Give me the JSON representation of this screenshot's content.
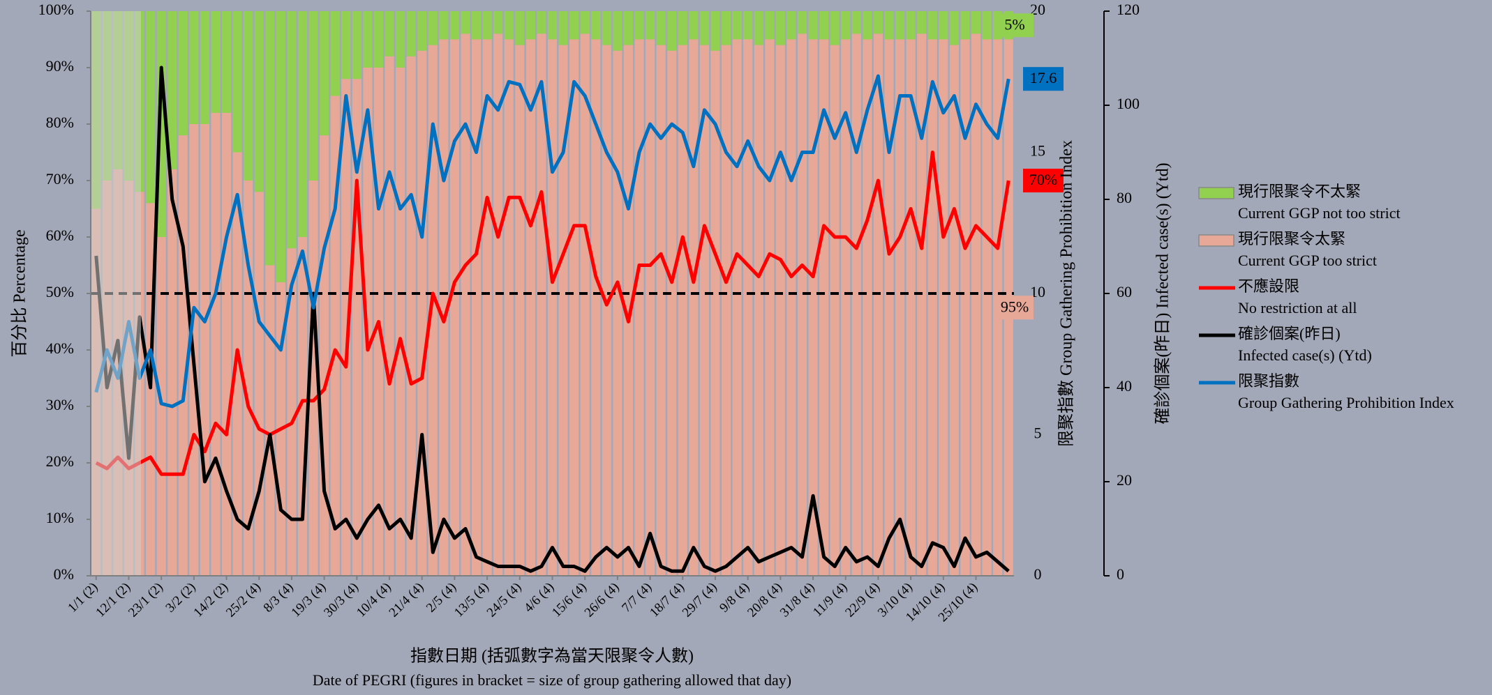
{
  "chart_data": {
    "type": "combo",
    "x_title": "指數日期 (括弧數字為當天限聚令人數)",
    "x_title_en": "Date of PEGRI (figures in bracket = size of group gathering allowed that day)",
    "y_title": "百分比 Percentage",
    "y2_title": "限聚指數 Group Gathering Prohibition Index",
    "y3_title": "確診個案(昨日) Infected case(s) (Ytd)",
    "categories": [
      "1/1 (2)",
      null,
      null,
      "12/1 (2)",
      null,
      null,
      "23/1 (2)",
      null,
      null,
      "3/2 (2)",
      null,
      null,
      "14/2 (2)",
      null,
      null,
      "25/2 (4)",
      null,
      null,
      "8/3 (4)",
      null,
      null,
      "19/3 (4)",
      null,
      null,
      "30/3 (4)",
      null,
      null,
      "10/4 (4)",
      null,
      null,
      "21/4 (4)",
      null,
      null,
      "2/5 (4)",
      null,
      null,
      "13/5 (4)",
      null,
      null,
      "24/5 (4)",
      null,
      null,
      "4/6 (4)",
      null,
      null,
      "15/6 (4)",
      null,
      null,
      "26/6 (4)",
      null,
      null,
      "7/7 (4)",
      null,
      null,
      "18/7 (4)",
      null,
      null,
      "29/7 (4)",
      null,
      null,
      "9/8 (4)",
      null,
      null,
      "20/8 (4)",
      null,
      null,
      "31/8 (4)",
      null,
      null,
      "11/9 (4)",
      null,
      null,
      "22/9 (4)",
      null,
      null,
      "3/10 (4)",
      null,
      null,
      "14/10 (4)",
      null,
      null,
      "25/10 (4)",
      null,
      null,
      null
    ],
    "series": [
      {
        "name": "現行限聚令不太緊",
        "name_en": "Current GGP not too strict",
        "type": "bar",
        "axis": "y",
        "color": "#92d050",
        "end_label": "5%",
        "values": [
          35,
          30,
          28,
          30,
          32,
          34,
          40,
          28,
          22,
          20,
          20,
          18,
          18,
          25,
          30,
          32,
          45,
          48,
          42,
          40,
          30,
          22,
          15,
          12,
          12,
          10,
          10,
          8,
          10,
          8,
          7,
          6,
          5,
          5,
          4,
          5,
          5,
          4,
          5,
          6,
          5,
          4,
          5,
          6,
          5,
          4,
          5,
          6,
          7,
          6,
          5,
          5,
          6,
          7,
          6,
          5,
          6,
          7,
          6,
          5,
          5,
          6,
          5,
          6,
          5,
          4,
          5,
          5,
          6,
          5,
          4,
          5,
          4,
          5,
          5,
          5,
          4,
          5,
          5,
          6,
          5,
          4,
          5,
          5,
          5
        ]
      },
      {
        "name": "現行限聚令太緊",
        "name_en": "Current GGP too strict",
        "type": "bar",
        "axis": "y",
        "color": "#e8a898",
        "end_label": "95%",
        "values": [
          65,
          70,
          72,
          70,
          68,
          66,
          60,
          72,
          78,
          80,
          80,
          82,
          82,
          75,
          70,
          68,
          55,
          52,
          58,
          60,
          70,
          78,
          85,
          88,
          88,
          90,
          90,
          92,
          90,
          92,
          93,
          94,
          95,
          95,
          96,
          95,
          95,
          96,
          95,
          94,
          95,
          96,
          95,
          94,
          95,
          96,
          95,
          94,
          93,
          94,
          95,
          95,
          94,
          93,
          94,
          95,
          94,
          93,
          94,
          95,
          95,
          94,
          95,
          94,
          95,
          96,
          95,
          95,
          94,
          95,
          96,
          95,
          96,
          95,
          95,
          95,
          96,
          95,
          95,
          94,
          95,
          96,
          95,
          95,
          95
        ]
      },
      {
        "name": "不應設限",
        "name_en": "No restriction at all",
        "type": "line",
        "axis": "y",
        "color": "#ff0000",
        "end_label": "70%",
        "values": [
          20,
          19,
          21,
          19,
          20,
          21,
          18,
          18,
          18,
          25,
          22,
          27,
          25,
          40,
          30,
          26,
          25,
          26,
          27,
          31,
          31,
          33,
          40,
          37,
          70,
          40,
          45,
          34,
          42,
          34,
          35,
          50,
          45,
          52,
          55,
          57,
          67,
          60,
          67,
          67,
          62,
          68,
          52,
          57,
          62,
          62,
          53,
          48,
          52,
          45,
          55,
          55,
          57,
          52,
          60,
          52,
          62,
          57,
          52,
          57,
          55,
          53,
          57,
          56,
          53,
          55,
          53,
          62,
          60,
          60,
          58,
          63,
          70,
          57,
          60,
          65,
          58,
          75,
          60,
          65,
          58,
          62,
          60,
          58,
          70
        ]
      },
      {
        "name": "確診個案(昨日)",
        "name_en": "Infected case(s) (Ytd)",
        "type": "line",
        "axis": "y3",
        "color": "#000000",
        "values": [
          68,
          40,
          50,
          25,
          55,
          40,
          108,
          80,
          70,
          45,
          20,
          25,
          18,
          12,
          10,
          18,
          30,
          14,
          12,
          12,
          60,
          18,
          10,
          12,
          8,
          12,
          15,
          10,
          12,
          8,
          30,
          5,
          12,
          8,
          10,
          4,
          3,
          2,
          2,
          2,
          1,
          2,
          6,
          2,
          2,
          1,
          4,
          6,
          4,
          6,
          2,
          9,
          2,
          1,
          1,
          6,
          2,
          1,
          2,
          4,
          6,
          3,
          4,
          5,
          6,
          4,
          17,
          4,
          2,
          6,
          3,
          4,
          2,
          8,
          12,
          4,
          2,
          7,
          6,
          2,
          8,
          4,
          5,
          3,
          1
        ]
      },
      {
        "name": "限聚指數",
        "name_en": "Group Gathering Prohibition Index",
        "type": "line",
        "axis": "y2",
        "color": "#0070c0",
        "end_label": "17.6",
        "values": [
          6.5,
          8,
          7,
          9,
          7,
          8,
          6.1,
          6,
          6.2,
          9.5,
          9,
          10,
          12,
          13.5,
          11,
          9,
          8.5,
          8,
          10.3,
          11.5,
          9.5,
          11.6,
          13,
          17,
          14.3,
          16.5,
          13,
          14.3,
          13,
          13.5,
          12,
          16,
          14,
          15.4,
          16,
          15,
          17,
          16.5,
          17.5,
          17.4,
          16.5,
          17.5,
          14.3,
          15,
          17.5,
          17,
          16,
          15,
          14.3,
          13,
          15,
          16,
          15.5,
          16,
          15.7,
          14.5,
          16.5,
          16,
          15,
          14.5,
          15.4,
          14.5,
          14,
          15,
          14,
          15,
          15,
          16.5,
          15.5,
          16.4,
          15,
          16.5,
          17.7,
          15,
          17,
          17,
          15.5,
          17.5,
          16.4,
          17,
          15.5,
          16.7,
          16,
          15.5,
          17.6
        ]
      }
    ],
    "reference_line": 50,
    "ylim": [
      0,
      100
    ],
    "yticks": [
      {
        "value": 0,
        "label": "0%"
      },
      {
        "value": 10,
        "label": "10%"
      },
      {
        "value": 20,
        "label": "20%"
      },
      {
        "value": 30,
        "label": "30%"
      },
      {
        "value": 40,
        "label": "40%"
      },
      {
        "value": 50,
        "label": "50%"
      },
      {
        "value": 60,
        "label": "60%"
      },
      {
        "value": 70,
        "label": "70%"
      },
      {
        "value": 80,
        "label": "80%"
      },
      {
        "value": 90,
        "label": "90%"
      },
      {
        "value": 100,
        "label": "100%"
      }
    ],
    "y2lim": [
      0,
      20
    ],
    "y2ticks": [
      0,
      5,
      10,
      15,
      20
    ],
    "y3lim": [
      0,
      120
    ],
    "y3ticks": [
      0,
      20,
      40,
      60,
      80,
      100,
      120
    ],
    "legend": "right"
  }
}
